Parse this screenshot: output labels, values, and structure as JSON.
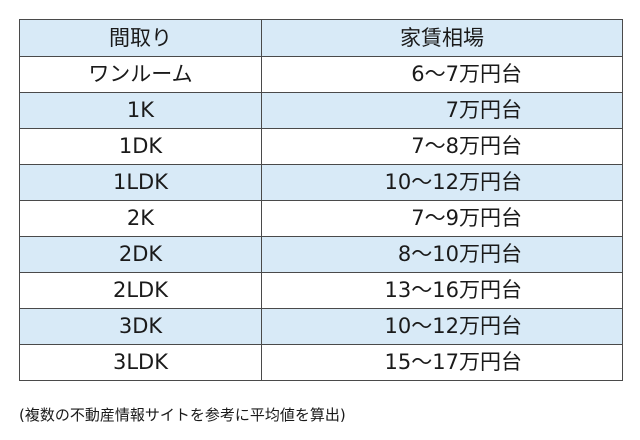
{
  "table": {
    "headers": {
      "layout": "間取り",
      "rent": "家賃相場"
    },
    "rows": [
      {
        "layout": "ワンルーム",
        "rent": "6～7万円台"
      },
      {
        "layout": "1K",
        "rent": "7万円台"
      },
      {
        "layout": "1DK",
        "rent": "7～8万円台"
      },
      {
        "layout": "1LDK",
        "rent": "10～12万円台"
      },
      {
        "layout": "2K",
        "rent": "7～9万円台"
      },
      {
        "layout": "2DK",
        "rent": "8～10万円台"
      },
      {
        "layout": "2LDK",
        "rent": "13～16万円台"
      },
      {
        "layout": "3DK",
        "rent": "10～12万円台"
      },
      {
        "layout": "3LDK",
        "rent": "15～17万円台"
      }
    ]
  },
  "note": "(複数の不動産情報サイトを参考に平均値を算出)",
  "colors": {
    "header_background": "#d8eaf7",
    "stripe_background": "#d8eaf7",
    "border": "#4a4a4a"
  }
}
